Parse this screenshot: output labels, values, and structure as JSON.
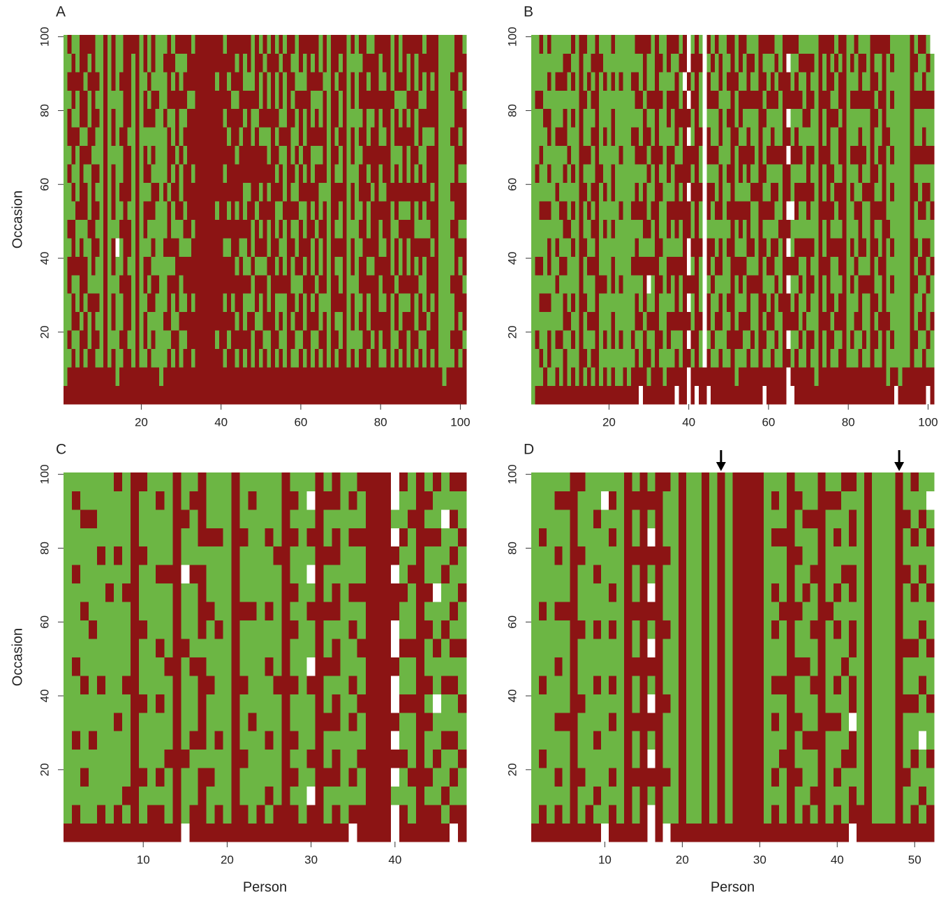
{
  "chart_data": [
    {
      "type": "heatmap",
      "title": "A",
      "ylabel": "Occasion",
      "xlim": [
        0.5,
        101.5
      ],
      "ylim": [
        0.5,
        100.5
      ],
      "xticks": [
        20,
        40,
        60,
        80,
        100
      ],
      "yticks": [
        20,
        40,
        60,
        80,
        100
      ],
      "colors": {
        "G": "#6cb644",
        "R": "#8c1414",
        "W": "#ffffff"
      },
      "columns": [
        "RGGGGGGGGGGGGGGGGGGG",
        "RRGRGGRRGRGGRGRRGRGR",
        "RRRGRRGRRRGRGRRGRRRG",
        "RRGGRGGRGGRGGGRGGRGG",
        "RRRRGRRRRGRRRRGRRRRR",
        "RRGRRGRRGGRRGRGRRGRR",
        "RRRGGRGGGRGGGRRGGRGR",
        "RRRRRRGRRRRRRGRRRRRR",
        "RRGRGRGGRGRGRGGRGRGG",
        "RRGGGGGGGGGGGGGGGGGG",
        "RRRRRRRRRRRRRRRRRRRR",
        "RRGGGGGGGGGGGGGGGGGG",
        "RRRGRRGRRGRRRGRRGRRR",
        "RGGGGGGGWGGGGGGGGGGG",
        "RRGRGGRGGRGRGGRGGRGG",
        "RRRRRRRRRRRRRRRRRRRR",
        "RRRGRRRGRRGRRRGRRRRR",
        "RRGGGGGGGGGGGGGGGGGR",
        "RRRRRRRRRRRRRRRRRRRR",
        "RRGGGGGGGGGGGGGGGGGG",
        "RRGRRGRRGRRGRRGRRGRR",
        "RRRGGRGRGGRGRGGRGRGG",
        "RRGRGRRGRGRRGRGRRGRR",
        "RRGGGGRGGGGRGGGGRGGG",
        "RGGGGGGGGGGGGGGGGGGG",
        "RRGGRGGGRGGRGGGRGGRG",
        "RRRGRRRGRRRGRRRGRRRR",
        "RRGRGGRGRGGRGRGGRGRG",
        "RRRRGRRRRGRRRGRRRRGR",
        "RRGGRGGRGGRGGRGGRGGR",
        "RRRGRGRRGRGRRGRGRRGR",
        "RRRRRRRRGRRRRRRRGRRR",
        "RRGRRGRRRGRRGRRRGRRG",
        "RRRRRRRRRRRRRRRRRRRR",
        "RRRRRRRRRRRRRRRRRRRR",
        "RRRRRRRRRRRRRRRRRRRR",
        "RRRRRRRRRRRRRRRRRRRR",
        "RRRRRRRRRRRRRRRRRRRR",
        "RRRGRRRRRRGRRRRRRGRR",
        "RRRRRRRRRRRRRRRRRRRR",
        "RRGRRGRRGRRRGRRGRRRG",
        "RRRGRRRRGRGRRRGRRGRR",
        "RRRRRGRRRRRRRRRRGRRR",
        "RRGRGRRGRRGRRGRRGRGR",
        "RRRRRRRRGRRRRRGRRRRR",
        "RRGRGGRGGRGGRRRGRGGR",
        "RRRRRGRGRRRGRRRRRGRR",
        "RRGGRGGRGGRRRRGGRGGG",
        "RRRRGRRGRRGRRRRGRRRR",
        "RRGRGGRGRGRGRRGRGGRG",
        "RRRGRRRGRRRRRRGRRRGR",
        "RRGGRGGRGGRGRGGRGGRG",
        "RRRRRRRRRRRRRRRRRRRR",
        "RRGRGGRGRGGRGRGRGGRG",
        "RRRGRGRRGRGRRGRGRRGR",
        "RRGGGGRGGGRGGGRGGGRG",
        "RRRRRRRRRRRRRRRRRRRR",
        "RRGRGRGGRGRGRGGRGRGR",
        "RRGGRGGRGGRGGRGGRGGG",
        "RRRGRRGRRRGRRGRRRGRR",
        "RRGRGGRGRGGRGRGGRGGR",
        "RRRRRRRRRRRRRRRRRRRR",
        "RRGGRGRGGRGRGGRGGRGR",
        "RRRGRRGRRGRRRGRRGRRR",
        "RRGRGGRGGRGGRGRGGRGG",
        "RRRRRGRRRRRGRRRRRGRR",
        "RRGGGGGGGGGGGGGGGGGG",
        "RRRRRRRRRRRRRRRRRRRR",
        "RRGRGRRGRGRRGRGRRGRR",
        "RRRGGRGGRGGRGGRGGRGR",
        "RRRRRRRRRRRRRRRRRRRR",
        "RRGGGGGGGGGGGGGGGGGG",
        "RRRGRRGRRGRRGRRGRRGR",
        "RRGGGGGGGGGGGGGGGGGG",
        "RRRGRGRRGRGRRGRGRRGR",
        "RRRRRRRRRRRRRRRRRRRR",
        "RRGRGGRGRGGRGRGGRGRG",
        "RRRGRRRGRRRGRRRGRRRG",
        "RRRRRRRRRRRRRRRRRRRR",
        "RRGGRGGRGGRGGRGGRGGR",
        "RRGRRGRRGRRGRRGRRGRR",
        "RRRRRRRRRRRRRRRRRRRR",
        "RRGGGGRGGGGRGGGGRGGG",
        "RRRGRRGRRGRRRGRRGRRR",
        "RRGRGGRGGRGRGGRGGRGG",
        "RRRRRGRRRRGRRRRRGRRR",
        "RRGGRGRGGRGRGGRGRGGR",
        "RRRRRRRRRRRRRRRRRRRR",
        "RRGRGGRGRGGRGRGGRGGR",
        "RRRGRRGRRGRRRGRRGRRR",
        "RRGGRGGGRGGRGGGRGGRG",
        "RRRRGRRRRGRRRRGRRRRR",
        "RRGRRGRRGRRGRRGRRGRR",
        "RRRRRRRRRRRRRRRRRRRR",
        "RRGGGGGGGGGGGGGGGGGG",
        "RGGGGGGGGGGGGGGGGGGG",
        "RRGGGGGGGGGGGGGGGGGG",
        "RRGRGGRGGRGRGGRGGRGG",
        "RRRRRRRRRRRRRRRRRRRR",
        "RRGRGRRGRGRRGRGRRGRR",
        "RRRGRRGRRGRRGRRRGRRG"
      ]
    },
    {
      "type": "heatmap",
      "title": "B",
      "xlim": [
        0.5,
        101.5
      ],
      "ylim": [
        0.5,
        100.5
      ],
      "xticks": [
        20,
        40,
        60,
        80,
        100
      ],
      "yticks": [
        20,
        40,
        60,
        80,
        100
      ],
      "colors": {
        "G": "#6cb644",
        "R": "#8c1414",
        "W": "#ffffff"
      },
      "columns": [
        "GGGGGGGGGGGGGGGGGGGG",
        "RGGRGGGRGGGGRGGGRGGG",
        "RGRGGRGRGGRGGRGGRGGR",
        "RRGGGRGGGGRGGGGRGGGG",
        "RGRRGRGRRGRGRGRRGRGR",
        "RGGGGGGGGGGGGGGGGGGG",
        "RRGRGGRGRGGRGGRGGRGG",
        "RGGRGGGRGGRGGGRGGRGG",
        "RRRGRRGRGRRGRGRRGRRG",
        "RGGGRGGGGRGGGRGGGGRG",
        "RRGRGRGGRGRGRGGRGRGR",
        "RGGGGGGGGGGGGGGGGGGG",
        "RRRRRRRRRRRRRRRRRRRR",
        "RGRGGRGGRGGRGRGGRGGR",
        "RRGGRGGRGGRGGRGGGRGG",
        "RGRGRGGRGRGRGGRGRGRG",
        "RRRRRRRRRRRRRRRRRRRR",
        "RGGGGGRGGGGGRGGGGGRG",
        "RRGRGGRGGRGRGGRGGRGG",
        "RGGGGGGGGGGGGGGGGGGG",
        "RRGRRGRRGRGRRGRRGRGR",
        "RGGGGGGGGGGGGGGGGGGG",
        "RGGRGGRGGGRGGRGGGRGG",
        "RRGGGGGGGGGGGGGGGGGG",
        "RGGGGGGGGGGGGGGGGGGG",
        "RRGRGGGRGGRGGGRGGRGG",
        "RRRGRRGRRGRRGRRGRRGR",
        "WRGGRGGRGGRGGRGGRGGR",
        "RRRRGRRRGRRRGRRRGRRR",
        "RGRGRGWRGRGGRGRGRGGR",
        "RRGGRGGRGGRGGRGGRGGG",
        "RRRRRRRRRRRRRRRRRRRR",
        "RRGRGGRGRGGRGRGGRGRG",
        "RGGGGGGGGGGGGGGGGGGG",
        "RRGRRGRRGRRGRRGRRGRR",
        "RRGGRGGRGGRGGRGGRGGR",
        "WRRGRRRRGRRRRGRRRRGR",
        "RRGGRGGRGGRGRGGRGGRG",
        "RRRRRRRRRRRRRRRRRWRR",
        "WWRWRWRWWRRWRRWRWRWW",
        "RRGRGGRGRGGRGRGGRGRG",
        "WRRRRRRRRRRRRRRRRRRR",
        "RRGGRGGGRGGRGGRGGGRG",
        "RRWWWWWWWWWWWWWWWWWW",
        "WRRGRRGRRGRRGRRGRRGR",
        "RRGRGGRGRGGRGRGGRGRG",
        "RRGGRGGRGGRGGRGGRGGR",
        "RRRGRRGRRGRRRGRRGRRG",
        "RRGGGGGGGGGGGGGGGGGG",
        "RRGRGRGGRGRGRGGRGRGR",
        "RRRRRRRRRRRRRRRRRRRR",
        "RGGRGGGRGGRGGGRGGRGG",
        "RRGRRGRRGRRGRRGRRGRR",
        "RRGGRGGRGGRGGRGGRGGR",
        "RRRGRRRGRRRGRRRGRRRG",
        "RRGRGGRGRGGRGRGGRGRG",
        "RRGGGGRGGGGRGGGGRGGG",
        "RRRRRRRRRRRRRRRRRRRR",
        "WRGRGRGGRGRGRGGRGRGR",
        "RRGGRGGRGGRGGRGGRGGR",
        "RRRGRRGRRGRRGRRGRRGR",
        "RRGRGGRGRGGRGRGGRGRG",
        "RRGGGRGGGRGGGRGGGRGG",
        "RRRRRRRRRRRRRRRRRRRR",
        "WWRWRRWRWRWRRWRWRRWR",
        "WRGGRGGRGGWGGRGGRGGR",
        "RRRGRRGRRGRRGRRGRRGR",
        "RRGRGGRGRGGRGRGGRGRG",
        "RRGGRGGGRGGRGGGRGGRG",
        "RRRRGRRRRGRRRRGRRRRG",
        "RRGRGGRGRGGRGRGGRGRG",
        "RGGGGGGGGGGGGGGGGGGG",
        "RRRRRRRRRRRRRRRRRRRR",
        "RRGGRGGRGGRGGRGGRGGR",
        "RRRRRRRRRRRRRRRRRRRR",
        "RRGRGRGGRGRGRGGRGRGR",
        "RRGGRGGGRGGRGGGRGGRG",
        "RRRGRRGRRGRRGRRGRRGR",
        "RRRRRRRRRRRRRRRRRRRR",
        "RRGGGGGGGGGGGGGGGGGG",
        "RRGRGGRGRGGRGRGGRGRG",
        "RRGGRGGRGGRGGRGGRGGR",
        "RRRGRRRGRRRGRRRGRRRG",
        "RRGRGGRGRGGRGRGGRGRG",
        "RRGGGGRGGGGRGGGGRGGG",
        "RRRRRRRRRRRRRRRRRRRR",
        "RRGRGRGGRGRGRGGRGRGR",
        "RRGGRGGRGGRGGRGGRGGR",
        "RRRRRRRRRRRRRRRRRRRR",
        "RGGGRGGGGRGGGGRGGGGR",
        "RRGRGGRGRGGRGRGGRGRG",
        "WRGGGGGGGGGGGGGGGGGG",
        "RGGGGGGGGGGGGGGGGGGG",
        "RRGGGGGGGGGGGGGGGGGG",
        "RRGGGGGGGGGGGGGGGGGG",
        "RRRRRRRRRRRRRRRRRRRR",
        "RRGRGGRGRGGRGRGGRGRG",
        "RRGGRGGRGGRGGRGGRGGR",
        "RRRGRRGRRGRRGRRGRRGR",
        "WRGRGGRGRGGRGRGGRGRG",
        "RRGGRGGRGGRGGRGGRGGW"
      ]
    },
    {
      "type": "heatmap",
      "title": "C",
      "xlabel": "Person",
      "ylabel": "Occasion",
      "xlim": [
        0.5,
        48.5
      ],
      "ylim": [
        0.5,
        100.5
      ],
      "xticks": [
        10,
        20,
        30,
        40
      ],
      "yticks": [
        20,
        40,
        60,
        80,
        100
      ],
      "colors": {
        "G": "#6cb644",
        "R": "#8c1414",
        "W": "#ffffff"
      },
      "columns": [
        "RGGGGGGGGGGGGGGGGGGG",
        "RRGGGRGGGRGGGGRGGGRG",
        "RGGRGGGGRGGGRGGGGRGG",
        "RGGGGRGGGGGRGGGGGRGG",
        "RRGGGGGGRGGGGGGRGGGG",
        "RGGGGGGGGGGGGRGGGGGG",
        "RRGGGGRGGGGGGGGRGGGR",
        "RGRGGGGGRGGGGRGGGGGG",
        "RRRRRRRRRRRRRRRRRRRR",
        "RGGRGGGRGGGRGGGRGGGR",
        "RRGGGGGGGGGGGGGGGGGG",
        "RRGRGGGRGGRGGGRGGGRG",
        "RGGGRGGGGRGGGGRGGGGG",
        "RRRRRRRRRRRRRRRRRRRR",
        "WGGGRGGGGGRGGGWGGRGG",
        "RRGGGRGGGRGGGGRGGGRG",
        "RRRRGRRRRRGRRRRGRRRR",
        "RGGRGGGGRGGGRGGGRGGG",
        "RRGGGRGGGGGRGGGGRGGG",
        "RGGGGGGGGGGGGGGGGGGG",
        "RRRRRRRRRRRRRRRRRRRR",
        "RRGGRGGGRGGGRGGGRGGG",
        "RGGGGGRGGGGGRGGGGGRG",
        "RRGGGGGGGGGGGGGGGGGG",
        "RGRGGRGGGRGGRGGGRGGG",
        "RRGGGGGGRGGGGGGRGGGG",
        "RRRRRRRRRRRRRRRRRRRR",
        "RRGRGRGGRGGRGRGGRGRG",
        "RGGGGGGGGGGGGGGGGGGG",
        "RRWGRGGGRWGGRGWGRGWG",
        "RRRRRRRRRRRRRRRRRRRR",
        "RGGRGGRGGRGGRGGRGGRG",
        "RRGRRGRRGRRGRRGRRGRR",
        "RGGGGGGGGGGGGGGGGGGG",
        "WRGRGGRGRGGRGRGGRGRG",
        "RRGGRGGRGGRGGRGGRGGR",
        "RRRRRRRRRRRRRRRRRRRR",
        "RRRRRRRRRRRRRRRRRRRR",
        "RRRRRRRRRRRRRRRRRRRR",
        "WWGWRWRWWRWWRRWRWGWW",
        "RRGGRGGRGGRGGRGGRGGR",
        "RGGRGGGRGGRGGGRGGRGG",
        "RRRRRRRRRRRRRRRRRRRR",
        "RRGRGGRGRGGRGRGGRGRG",
        "RRGGRGGWGGRGGWGGRGGR",
        "RGRGGRGGRGGRGGRGGWGG",
        "WRGRGRGGRGRGRGGRGRGR",
        "RRGGRGGRGGRGGRGGRGGR"
      ]
    },
    {
      "type": "heatmap",
      "title": "D",
      "xlabel": "Person",
      "xlim": [
        0.5,
        52.5
      ],
      "ylim": [
        0.5,
        100.5
      ],
      "xticks": [
        10,
        20,
        30,
        40,
        50
      ],
      "yticks": [
        20,
        40,
        60,
        80,
        100
      ],
      "arrows": [
        25,
        48
      ],
      "colors": {
        "G": "#6cb644",
        "R": "#8c1414",
        "W": "#ffffff"
      },
      "columns": [
        "RGGGGGGGGGGGGGGGGGGG",
        "RRGGRGGGRGGGRGGGRGGG",
        "RGGGGGGGGGGGGGGGGGGG",
        "RRGRGGRGGRGGRGGRGGRG",
        "RGGGGGRGGGGGRGGGGGRG",
        "RRRRRRRRRRRRRRRRRRRR",
        "RGGRGGGRGGGRGGGRGGGR",
        "RRGGGGGGGGGGGGGGGGGG",
        "RGRGGRGGRGGRGGRGGRGG",
        "WGGGGGGGGGGGGGGGGGWG",
        "RRGRGGRGRGGRGRGGRGRG",
        "RGGGGGGGGGGGGGGGGGGG",
        "RRRRRRRRRRRRRRRRRRRR",
        "RGGRGGRGGRGGRGGRGGRG",
        "RRRRRRRRRRRRRRRRRRRR",
        "WWGRWGRWGRWGRWGRWGRG",
        "RRRRRRRRRRRRRRRRRRRR",
        "WGGRGGGRGGGRGGGRGGGR",
        "RGGGGGGGGGGGGGGGGGGG",
        "RRRRRRRRRRRRRRRRRRRR",
        "RGGGGGGGGGGGGGGGGGGG",
        "RGGGGGGGGGGGGGGGGGGG",
        "RRRRRRRRRRRRRRRRRRRR",
        "RGGGGGGGGGGGGGGGGGGG",
        "RRRRRRRRRRRRRRRRRRRR",
        "RGGGGGGGGGGGGGGGGGGG",
        "RRRRRRRRRRRRRRRRRRRR",
        "RRRRRRRRRRRRRRRRRRRR",
        "RRRRRRRRRRRRRRRRRRRR",
        "RRRRRRRRRRRRRRRRRRRR",
        "RGGGGGGGGGGGGGGGGGGG",
        "RRGRGGRGRGGRGRGGRGRG",
        "RGGGRGGGRGGGRGGGRGGG",
        "RRRRRRRRRRRRRRRRRRRR",
        "RGGRGGRGGRGGRGGRGGRG",
        "RRGGGRGGGRGGGRGGGRGG",
        "RGRGGRGGRGGRGGRGGRGG",
        "RRRRRRRRRRRRRRRRRRRR",
        "RGGGGGRGGGGGRGGGGGRG",
        "RRGRGGRGRGGRGRGGRGRG",
        "RGGGRGGGGRGGGGRGGGGR",
        "WRRGRRWRRGRRGRRGRRGR",
        "RRGGGGGGGGGGGGGGGGGG",
        "RRRRRRRRRRRRRRRRRRRR",
        "RGGGGGGGGGGGGGGGGGGG",
        "RGGGGGGGGGGGGGGGGGGG",
        "RGGGGGGGGGGGGGGGGGGG",
        "RRRRRRRRRRRRRRRRRRRR",
        "RGGRGGGRGGRGGGRGGRGG",
        "RRGGRGGRGGRGGRGGRGGR",
        "RGRGGWGGRGGRGGRGGRGG",
        "RRGGRGGRGGRGGRGGRGWG"
      ]
    }
  ]
}
